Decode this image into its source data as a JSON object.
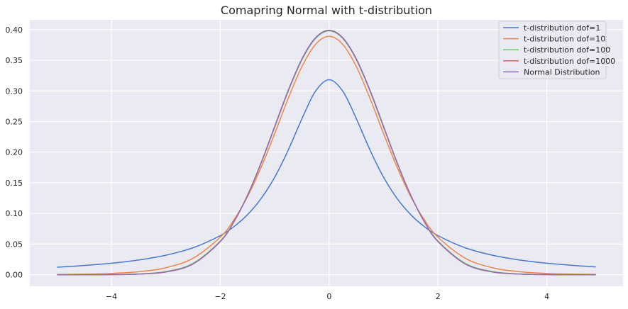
{
  "chart_data": {
    "type": "line",
    "title": "Comapring Normal with t-distribution",
    "xlabel": "",
    "ylabel": "",
    "xlim": [
      -5.5,
      5.4
    ],
    "ylim": [
      -0.019,
      0.416
    ],
    "xticks": [
      -4,
      -2,
      0,
      2,
      4
    ],
    "xtick_labels": [
      "−4",
      "−2",
      "0",
      "2",
      "4"
    ],
    "yticks": [
      0,
      0.05,
      0.1,
      0.15,
      0.2,
      0.25,
      0.3,
      0.35,
      0.4
    ],
    "ytick_labels": [
      "0.00",
      "0.05",
      "0.10",
      "0.15",
      "0.20",
      "0.25",
      "0.30",
      "0.35",
      "0.40"
    ],
    "grid": true,
    "legend_position": "top-right",
    "background": "#eaeaf2",
    "x": [
      -5,
      -4.5,
      -4,
      -3.5,
      -3,
      -2.5,
      -2,
      -1.75,
      -1.5,
      -1.25,
      -1,
      -0.75,
      -0.5,
      -0.25,
      0,
      0.25,
      0.5,
      0.75,
      1,
      1.25,
      1.5,
      1.75,
      2,
      2.5,
      3,
      3.5,
      4,
      4.5,
      4.9
    ],
    "series": [
      {
        "name": "t-distribution dof=1",
        "color": "#4878d0",
        "values": [
          0.0122,
          0.015,
          0.0187,
          0.024,
          0.0318,
          0.0439,
          0.0637,
          0.0784,
          0.0979,
          0.1242,
          0.1592,
          0.2037,
          0.2546,
          0.2996,
          0.3183,
          0.2996,
          0.2546,
          0.2037,
          0.1592,
          0.1242,
          0.0979,
          0.0784,
          0.0637,
          0.0439,
          0.0318,
          0.024,
          0.0187,
          0.015,
          0.0127
        ]
      },
      {
        "name": "t-distribution dof=10",
        "color": "#ee854a",
        "values": [
          0.0004,
          0.0009,
          0.002,
          0.0048,
          0.0114,
          0.0269,
          0.0611,
          0.0895,
          0.1274,
          0.1751,
          0.2304,
          0.288,
          0.3397,
          0.376,
          0.3891,
          0.376,
          0.3397,
          0.288,
          0.2304,
          0.1751,
          0.1274,
          0.0895,
          0.0611,
          0.0269,
          0.0114,
          0.0048,
          0.002,
          0.0009,
          0.0005
        ]
      },
      {
        "name": "t-distribution dof=100",
        "color": "#6acc64",
        "values": [
          0.0,
          0.0,
          0.0002,
          0.0012,
          0.0051,
          0.0186,
          0.0549,
          0.0867,
          0.1294,
          0.1819,
          0.2408,
          0.2998,
          0.3508,
          0.3856,
          0.3979,
          0.3856,
          0.3508,
          0.2998,
          0.2408,
          0.1819,
          0.1294,
          0.0867,
          0.0549,
          0.0186,
          0.0051,
          0.0012,
          0.0002,
          0.0,
          0.0
        ]
      },
      {
        "name": "t-distribution dof=1000",
        "color": "#d65f5f",
        "values": [
          0.0,
          0.0,
          0.0001,
          0.0009,
          0.0045,
          0.0176,
          0.0541,
          0.0863,
          0.1295,
          0.1825,
          0.2419,
          0.301,
          0.352,
          0.3866,
          0.3988,
          0.3866,
          0.352,
          0.301,
          0.2419,
          0.1825,
          0.1295,
          0.0863,
          0.0541,
          0.0176,
          0.0045,
          0.0009,
          0.0001,
          0.0,
          0.0
        ]
      },
      {
        "name": "Normal Distribution",
        "color": "#956cb4",
        "values": [
          0.0,
          0.0,
          0.0001,
          0.0009,
          0.0044,
          0.0175,
          0.054,
          0.0863,
          0.1295,
          0.1826,
          0.242,
          0.3011,
          0.3521,
          0.3867,
          0.3989,
          0.3867,
          0.3521,
          0.3011,
          0.242,
          0.1826,
          0.1295,
          0.0863,
          0.054,
          0.0175,
          0.0044,
          0.0009,
          0.0001,
          0.0,
          0.0
        ]
      }
    ]
  }
}
